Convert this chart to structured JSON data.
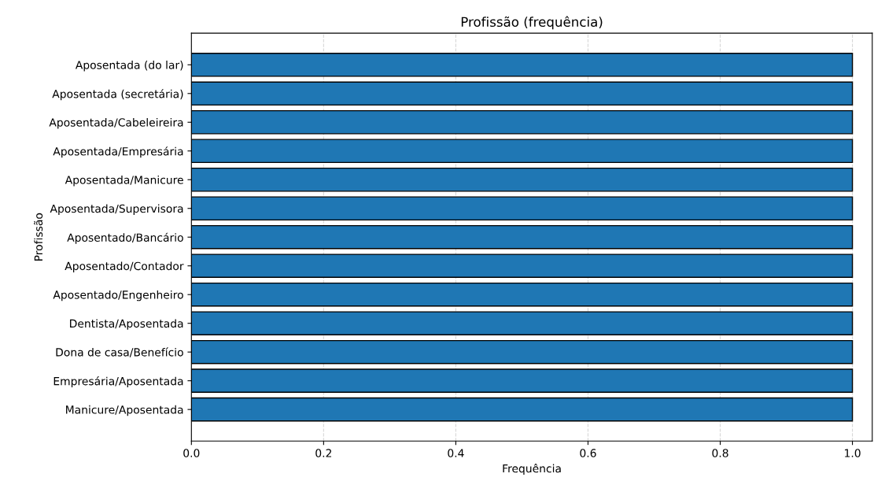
{
  "chart_data": {
    "type": "bar",
    "orientation": "horizontal",
    "title": "Profissão (frequência)",
    "xlabel": "Frequência",
    "ylabel": "Profissão",
    "categories": [
      "Aposentada (do lar)",
      "Aposentada (secretária)",
      "Aposentada/Cabeleireira",
      "Aposentada/Empresária",
      "Aposentada/Manicure",
      "Aposentada/Supervisora",
      "Aposentado/Bancário",
      "Aposentado/Contador",
      "Aposentado/Engenheiro",
      "Dentista/Aposentada",
      "Dona de casa/Benefício",
      "Empresária/Aposentada",
      "Manicure/Aposentada"
    ],
    "values": [
      1,
      1,
      1,
      1,
      1,
      1,
      1,
      1,
      1,
      1,
      1,
      1,
      1
    ],
    "color": "#1f77b4",
    "xlim": [
      0,
      1.03
    ],
    "xticks": [
      {
        "value": 0,
        "label": "0.0"
      },
      {
        "value": 0.2,
        "label": "0.2"
      },
      {
        "value": 0.4,
        "label": "0.4"
      },
      {
        "value": 0.6,
        "label": "0.6"
      },
      {
        "value": 0.8,
        "label": "0.8"
      },
      {
        "value": 1,
        "label": "1.0"
      }
    ],
    "grid": "x"
  }
}
